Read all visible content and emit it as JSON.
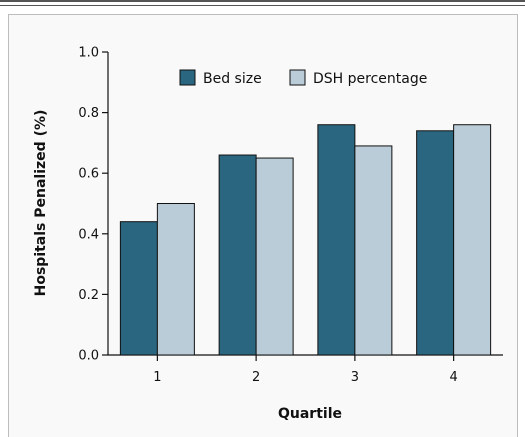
{
  "chart_data": {
    "type": "bar",
    "categories": [
      "1",
      "2",
      "3",
      "4"
    ],
    "series": [
      {
        "name": "Bed size",
        "values": [
          0.44,
          0.66,
          0.76,
          0.74
        ],
        "color": "#2b6680"
      },
      {
        "name": "DSH percentage",
        "values": [
          0.5,
          0.65,
          0.69,
          0.76
        ],
        "color": "#b9ccd7"
      }
    ],
    "xlabel": "Quartile",
    "ylabel": "Hospitals Penalized (%)",
    "ylim": [
      0,
      1.0
    ],
    "yticks": [
      "0.0",
      "0.2",
      "0.4",
      "0.6",
      "0.8",
      "1.0"
    ],
    "grid": false,
    "legend_position": "top-right"
  }
}
